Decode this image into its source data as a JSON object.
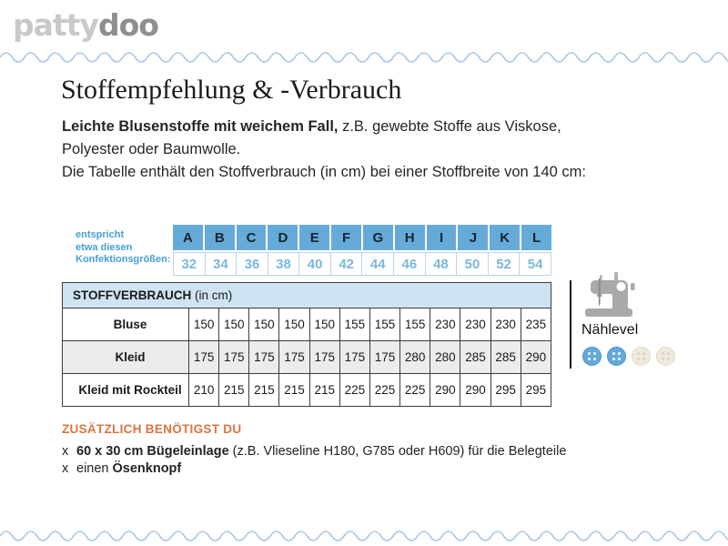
{
  "logo": {
    "part1": "patty",
    "part2": "doo"
  },
  "page": {
    "title": "Stoffempfehlung & -Verbrauch"
  },
  "intro": {
    "bold_lead": "Leichte Blusenstoffe mit weichem Fall,",
    "line1_rest": " z.B. gewebte Stoffe aus Viskose,",
    "line2": "Polyester oder Baumwolle.",
    "line3": "Die Tabelle enthält den Stoffverbrauch (in cm) bei einer Stoffbreite von 140 cm:"
  },
  "size_table": {
    "caption_lines": [
      "entspricht",
      "etwa diesen",
      "Konfektionsgrößen:"
    ],
    "letters": [
      "A",
      "B",
      "C",
      "D",
      "E",
      "F",
      "G",
      "H",
      "I",
      "J",
      "K",
      "L"
    ],
    "numbers": [
      "32",
      "34",
      "36",
      "38",
      "40",
      "42",
      "44",
      "46",
      "48",
      "50",
      "52",
      "54"
    ]
  },
  "consumption_table": {
    "title_bold": "STOFFVERBRAUCH",
    "title_unit": " (in cm)",
    "rows": [
      {
        "label": "Bluse",
        "values": [
          "150",
          "150",
          "150",
          "150",
          "150",
          "155",
          "155",
          "155",
          "230",
          "230",
          "230",
          "235"
        ]
      },
      {
        "label": "Kleid",
        "values": [
          "175",
          "175",
          "175",
          "175",
          "175",
          "175",
          "175",
          "280",
          "280",
          "285",
          "285",
          "290"
        ]
      },
      {
        "label": "Kleid mit Rockteil",
        "values": [
          "210",
          "215",
          "215",
          "215",
          "215",
          "225",
          "225",
          "225",
          "290",
          "290",
          "295",
          "295"
        ]
      }
    ]
  },
  "level": {
    "label": "Nählevel",
    "value": 2,
    "max": 4
  },
  "extras": {
    "heading": "ZUSÄTZLICH BENÖTIGST DU",
    "items": [
      {
        "bullet": "x",
        "segments": [
          {
            "text": "60 x 30 cm Bügeleinlage",
            "bold": true
          },
          {
            "text": " (z.B. Vlieseline H180, G785 oder H609) für die Belegteile",
            "bold": false
          }
        ]
      },
      {
        "bullet": "x",
        "segments": [
          {
            "text": "einen ",
            "bold": false
          },
          {
            "text": "Ösenknopf",
            "bold": true
          }
        ]
      }
    ]
  },
  "colors": {
    "size_header_blue": "#66abd7",
    "size_number_blue": "#7db7de",
    "caption_blue": "#45a0d5",
    "table_header_bg": "#cfe4f3",
    "row_alt_gray": "#ececec",
    "wave_blue": "#a9c7e4",
    "heading_orange": "#dc7442",
    "button_blue": "#64a9da",
    "button_cream": "#efeade",
    "logo_light_gray": "#c9c9c9",
    "logo_dark_gray": "#8f8f8f"
  }
}
